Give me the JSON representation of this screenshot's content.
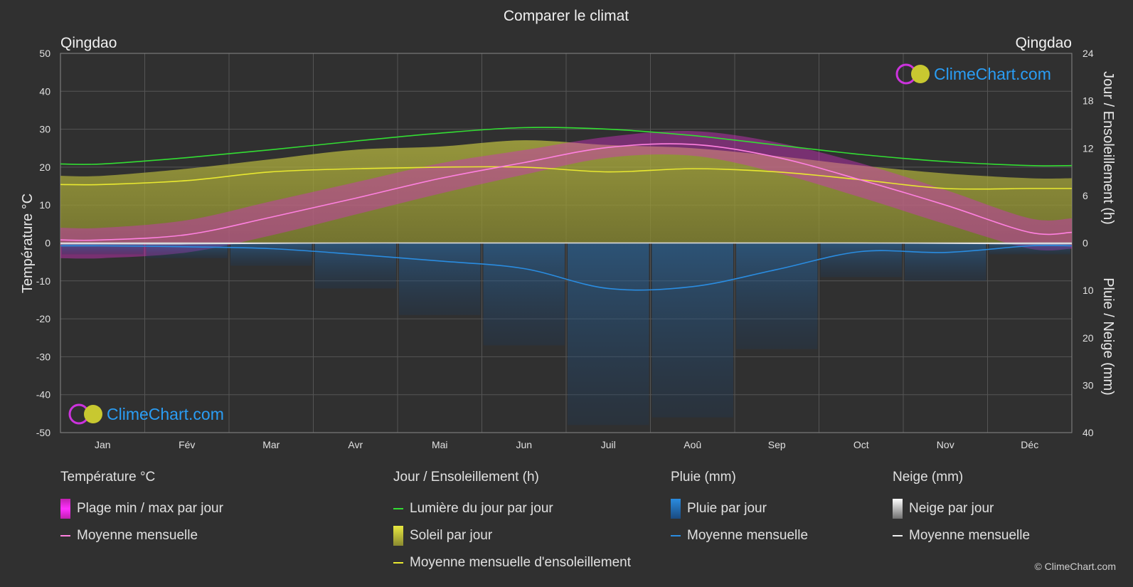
{
  "title": "Comparer le climat",
  "location_left": "Qingdao",
  "location_right": "Qingdao",
  "brand": "ClimeChart.com",
  "copyright": "© ClimeChart.com",
  "colors": {
    "background": "#303030",
    "daylight": "#33dd33",
    "sunshine_band": "#a8a838",
    "sunshine_avg": "#e8e830",
    "temp_band": "#e040c0",
    "temp_avg": "#ff80e0",
    "rain": "#2a8ce0",
    "snow": "#d8d8d8",
    "brand": "#2a9df4"
  },
  "chart_data": {
    "type": "line",
    "categories": [
      "Jan",
      "Fév",
      "Mar",
      "Avr",
      "Mai",
      "Jun",
      "Juil",
      "Aoû",
      "Sep",
      "Oct",
      "Nov",
      "Déc"
    ],
    "y_left": {
      "label": "Température °C",
      "range": [
        -50,
        50
      ],
      "ticks": [
        50,
        40,
        30,
        20,
        10,
        0,
        -10,
        -20,
        -30,
        -40,
        -50
      ]
    },
    "y_right_top": {
      "label": "Jour / Ensoleillement (h)",
      "range": [
        0,
        24
      ],
      "ticks": [
        24,
        18,
        12,
        6,
        0
      ]
    },
    "y_right_bottom": {
      "label": "Pluie / Neige (mm)",
      "range": [
        0,
        40
      ],
      "ticks": [
        10,
        20,
        30,
        40
      ]
    },
    "grid": true,
    "series": [
      {
        "name": "Lumière du jour par jour",
        "unit": "h",
        "values": [
          10.0,
          10.8,
          11.8,
          12.9,
          13.9,
          14.6,
          14.4,
          13.6,
          12.4,
          11.2,
          10.3,
          9.8
        ]
      },
      {
        "name": "Moyenne mensuelle d'ensoleillement",
        "unit": "h",
        "values": [
          7.4,
          7.9,
          9.0,
          9.4,
          9.6,
          9.6,
          9.0,
          9.4,
          9.0,
          8.0,
          6.9,
          6.9
        ]
      },
      {
        "name": "Soleil par jour",
        "unit": "h",
        "values": [
          8.5,
          9.4,
          10.6,
          11.8,
          12.2,
          13.0,
          12.4,
          12.0,
          11.0,
          9.8,
          8.8,
          8.2
        ]
      },
      {
        "name": "Moyenne mensuelle (température)",
        "unit": "°C",
        "values": [
          0.8,
          2.2,
          6.8,
          11.8,
          17.0,
          21.2,
          25.2,
          26.0,
          22.6,
          16.6,
          10.0,
          2.8
        ]
      },
      {
        "name": "Plage min / max par jour — max",
        "unit": "°C",
        "values": [
          4.0,
          6.0,
          11.0,
          16.0,
          21.0,
          24.5,
          28.0,
          29.5,
          26.5,
          21.0,
          14.0,
          6.5
        ]
      },
      {
        "name": "Plage min / max par jour — min",
        "unit": "°C",
        "values": [
          -4.0,
          -2.5,
          2.0,
          7.5,
          13.0,
          18.0,
          22.5,
          23.0,
          18.5,
          12.0,
          5.0,
          -1.5
        ]
      },
      {
        "name": "Moyenne mensuelle (pluie)",
        "unit": "mm",
        "values": [
          0.6,
          0.8,
          1.2,
          2.4,
          3.8,
          5.4,
          9.6,
          9.2,
          5.6,
          1.8,
          2.0,
          0.6
        ]
      },
      {
        "name": "Moyenne mensuelle (neige)",
        "unit": "mm",
        "values": [
          0.2,
          0.2,
          0.1,
          0.0,
          0.0,
          0.0,
          0.0,
          0.0,
          0.0,
          0.0,
          0.1,
          0.2
        ]
      }
    ]
  },
  "legend": {
    "temperature": {
      "header": "Température °C",
      "items": [
        "Plage min / max par jour",
        "Moyenne mensuelle"
      ]
    },
    "sun": {
      "header": "Jour / Ensoleillement (h)",
      "items": [
        "Lumière du jour par jour",
        "Soleil par jour",
        "Moyenne mensuelle d'ensoleillement"
      ]
    },
    "rain": {
      "header": "Pluie (mm)",
      "items": [
        "Pluie par jour",
        "Moyenne mensuelle"
      ]
    },
    "snow": {
      "header": "Neige (mm)",
      "items": [
        "Neige par jour",
        "Moyenne mensuelle"
      ]
    }
  }
}
